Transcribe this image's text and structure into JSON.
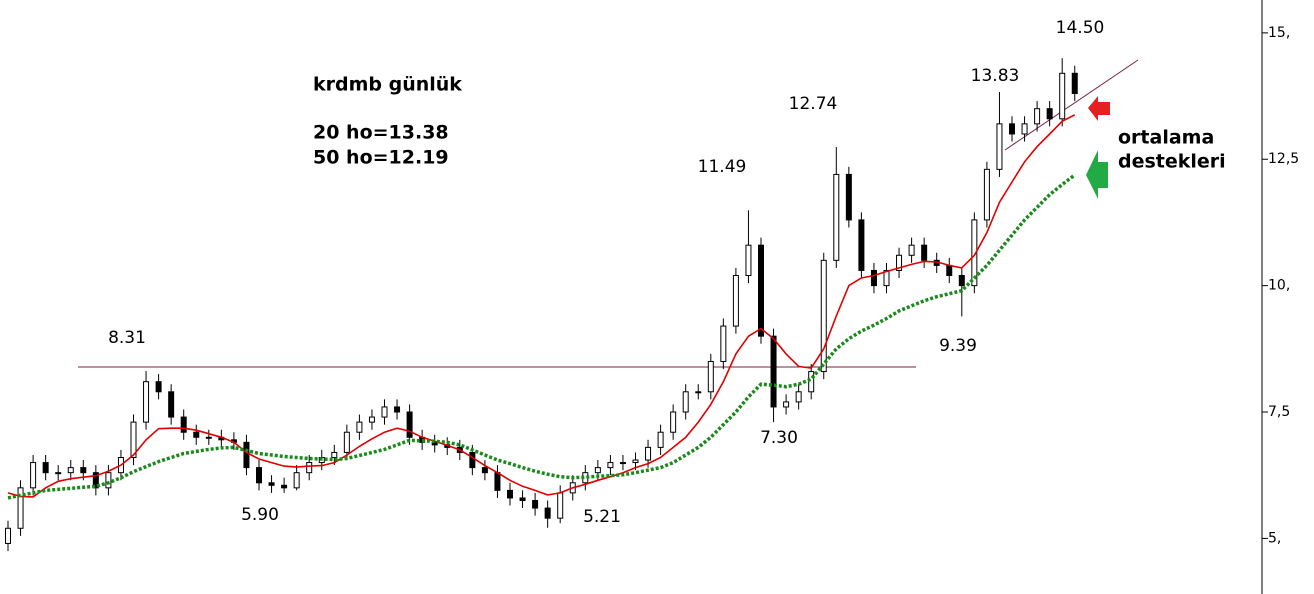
{
  "chart_data": {
    "type": "candlestick",
    "annotations": [
      "krdmb günlük",
      "20 ho=13.38",
      "50 ho=12.19",
      "8.31",
      "5.90",
      "5.21",
      "11.49",
      "7.30",
      "12.74",
      "9.39",
      "13.83",
      "14.50",
      "ortalama",
      "destekleri"
    ],
    "open": [
      4.9,
      5.2,
      6.0,
      6.5,
      6.3,
      6.3,
      6.4,
      6.3,
      6.0,
      6.3,
      6.6,
      7.3,
      8.1,
      7.9,
      7.4,
      7.1,
      7.0,
      7.0,
      6.95,
      6.9,
      6.4,
      6.1,
      6.05,
      6.0,
      6.3,
      6.5,
      6.6,
      6.7,
      7.1,
      7.3,
      7.4,
      7.6,
      7.5,
      7.0,
      6.9,
      6.85,
      6.8,
      6.7,
      6.4,
      6.3,
      5.95,
      5.8,
      5.75,
      5.6,
      5.4,
      5.9,
      6.1,
      6.3,
      6.4,
      6.5,
      6.5,
      6.55,
      6.8,
      7.1,
      7.5,
      7.9,
      7.9,
      8.5,
      9.2,
      10.2,
      10.8,
      9.0,
      7.6,
      7.7,
      7.9,
      8.3,
      10.5,
      12.2,
      11.3,
      10.3,
      10.0,
      10.3,
      10.6,
      10.8,
      10.5,
      10.4,
      10.2,
      10.0,
      11.3,
      12.3,
      13.2,
      13.0,
      13.2,
      13.5,
      13.3,
      14.2
    ],
    "high": [
      5.35,
      6.15,
      6.65,
      6.65,
      6.45,
      6.55,
      6.55,
      6.45,
      6.45,
      6.75,
      7.45,
      8.31,
      8.25,
      8.05,
      7.55,
      7.25,
      7.15,
      7.15,
      7.1,
      7.05,
      6.55,
      6.25,
      6.2,
      6.45,
      6.65,
      6.75,
      6.85,
      7.25,
      7.45,
      7.55,
      7.75,
      7.75,
      7.65,
      7.15,
      7.05,
      7.0,
      6.95,
      6.85,
      6.55,
      6.45,
      6.1,
      5.95,
      5.9,
      5.75,
      6.05,
      6.25,
      6.45,
      6.55,
      6.65,
      6.65,
      6.7,
      6.95,
      7.25,
      7.65,
      8.05,
      8.05,
      8.65,
      9.35,
      10.35,
      11.49,
      10.95,
      9.15,
      7.85,
      8.05,
      8.45,
      10.65,
      12.74,
      12.35,
      11.45,
      10.45,
      10.45,
      10.75,
      10.95,
      10.95,
      10.65,
      10.55,
      10.35,
      11.45,
      12.45,
      13.83,
      13.35,
      13.35,
      13.65,
      13.65,
      14.5,
      14.35
    ],
    "low": [
      4.75,
      5.05,
      5.85,
      6.15,
      6.15,
      6.15,
      6.15,
      5.85,
      5.85,
      6.15,
      6.45,
      7.15,
      7.75,
      7.25,
      6.95,
      6.85,
      6.85,
      6.8,
      6.75,
      6.25,
      5.95,
      5.9,
      5.9,
      5.95,
      6.15,
      6.35,
      6.45,
      6.55,
      6.95,
      7.15,
      7.25,
      7.35,
      6.85,
      6.75,
      6.7,
      6.65,
      6.55,
      6.25,
      6.15,
      5.8,
      5.65,
      5.6,
      5.45,
      5.21,
      5.3,
      5.75,
      5.95,
      6.15,
      6.25,
      6.35,
      6.35,
      6.4,
      6.65,
      6.95,
      7.35,
      7.75,
      7.75,
      8.35,
      9.05,
      10.05,
      8.85,
      7.3,
      7.45,
      7.55,
      7.75,
      8.15,
      10.35,
      11.15,
      10.15,
      9.85,
      9.85,
      10.15,
      10.45,
      10.35,
      10.25,
      10.05,
      9.39,
      9.85,
      11.15,
      12.15,
      12.85,
      12.85,
      13.05,
      13.15,
      13.15,
      13.65
    ],
    "close": [
      5.2,
      6.0,
      6.5,
      6.3,
      6.3,
      6.4,
      6.3,
      6.0,
      6.3,
      6.6,
      7.3,
      8.1,
      7.9,
      7.4,
      7.1,
      7.0,
      7.0,
      6.95,
      6.9,
      6.4,
      6.1,
      6.05,
      6.0,
      6.3,
      6.5,
      6.6,
      6.7,
      7.1,
      7.3,
      7.4,
      7.6,
      7.5,
      7.0,
      6.9,
      6.85,
      6.8,
      6.7,
      6.4,
      6.3,
      5.95,
      5.8,
      5.75,
      5.6,
      5.4,
      5.9,
      6.1,
      6.3,
      6.4,
      6.5,
      6.5,
      6.55,
      6.8,
      7.1,
      7.5,
      7.9,
      7.9,
      8.5,
      9.2,
      10.2,
      10.8,
      9.0,
      7.6,
      7.7,
      7.9,
      8.3,
      10.5,
      12.2,
      11.3,
      10.3,
      10.0,
      10.3,
      10.6,
      10.8,
      10.5,
      10.4,
      10.2,
      10.0,
      11.3,
      12.3,
      13.2,
      13.0,
      13.2,
      13.5,
      13.3,
      14.2,
      13.8
    ],
    "series": [
      {
        "color": "#e00000",
        "values": [
          5.9,
          5.83,
          5.82,
          6.0,
          6.13,
          6.18,
          6.21,
          6.24,
          6.33,
          6.45,
          6.65,
          6.95,
          7.17,
          7.18,
          7.18,
          7.14,
          7.07,
          7.0,
          6.9,
          6.7,
          6.57,
          6.5,
          6.43,
          6.41,
          6.43,
          6.44,
          6.5,
          6.65,
          6.82,
          6.97,
          7.1,
          7.18,
          7.12,
          7.0,
          6.92,
          6.84,
          6.75,
          6.6,
          6.44,
          6.3,
          6.15,
          6.03,
          5.95,
          5.86,
          5.9,
          6.0,
          6.07,
          6.15,
          6.22,
          6.3,
          6.4,
          6.48,
          6.6,
          6.8,
          7.0,
          7.3,
          7.65,
          8.1,
          8.65,
          9.0,
          9.15,
          8.95,
          8.65,
          8.4,
          8.37,
          8.75,
          9.4,
          10.0,
          10.15,
          10.2,
          10.28,
          10.35,
          10.42,
          10.48,
          10.47,
          10.4,
          10.35,
          10.6,
          11.05,
          11.65,
          12.05,
          12.45,
          12.75,
          13.0,
          13.25,
          13.38
        ]
      },
      {
        "color": "#1a8a1a",
        "values": [
          5.8,
          5.85,
          5.9,
          5.95,
          5.97,
          5.99,
          6.01,
          6.03,
          6.1,
          6.2,
          6.32,
          6.42,
          6.52,
          6.6,
          6.68,
          6.72,
          6.76,
          6.79,
          6.8,
          6.74,
          6.68,
          6.65,
          6.62,
          6.6,
          6.58,
          6.57,
          6.56,
          6.58,
          6.64,
          6.7,
          6.76,
          6.85,
          6.94,
          6.93,
          6.92,
          6.9,
          6.85,
          6.75,
          6.65,
          6.55,
          6.48,
          6.4,
          6.33,
          6.27,
          6.22,
          6.2,
          6.21,
          6.23,
          6.24,
          6.26,
          6.3,
          6.35,
          6.4,
          6.5,
          6.65,
          6.8,
          7.0,
          7.25,
          7.5,
          7.8,
          8.05,
          8.03,
          8.0,
          8.05,
          8.15,
          8.45,
          8.75,
          8.95,
          9.1,
          9.22,
          9.35,
          9.5,
          9.6,
          9.7,
          9.78,
          9.84,
          9.9,
          10.15,
          10.4,
          10.7,
          11.0,
          11.3,
          11.55,
          11.8,
          12.0,
          12.19
        ]
      }
    ],
    "ylim": [
      3.9,
      15.65
    ],
    "yticks": [
      {
        "value": 15,
        "label": "15,"
      },
      {
        "value": 12.5,
        "label": "12,5"
      },
      {
        "value": 10,
        "label": "10,"
      },
      {
        "value": 7.5,
        "label": "7,5"
      },
      {
        "value": 5,
        "label": "5,"
      }
    ]
  }
}
